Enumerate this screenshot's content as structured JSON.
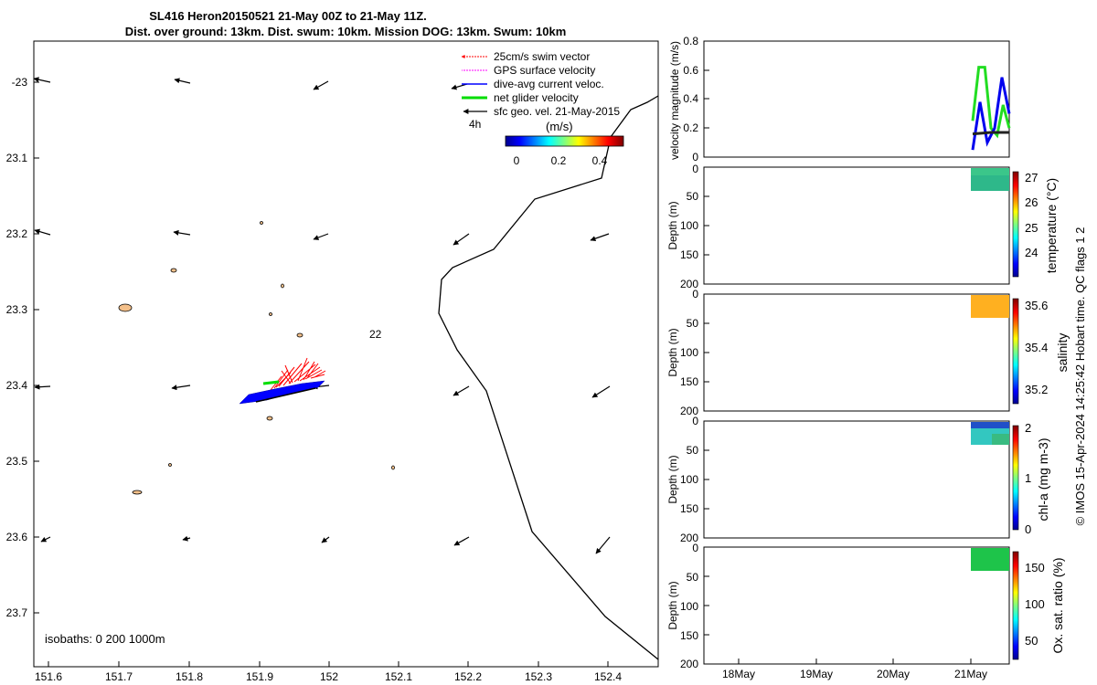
{
  "title": {
    "line1": "SL416 Heron20150521 21-May 00Z to 21-May 11Z.",
    "line2": "Dist. over ground: 13km. Dist. swum: 10km. Mission DOG: 13km. Swum: 10km"
  },
  "colors": {
    "swim": "#ff0000",
    "gps": "#ff00ff",
    "dive_avg": "#0000ff",
    "net": "#00dd00",
    "sfc": "#000000",
    "reef": "#f4c08a"
  },
  "map": {
    "xticks": [
      "151.6",
      "151.7",
      "151.8",
      "151.9",
      "152",
      "152.1",
      "152.2",
      "152.3",
      "152.4"
    ],
    "yticks": [
      "-23",
      "23.1",
      "23.2",
      "23.3",
      "23.4",
      "23.5",
      "23.6",
      "23.7"
    ],
    "isobath_label": "isobaths: 0   200  1000m",
    "label_22": "22",
    "label_4h": "4h",
    "colorbar_unit": "(m/s)",
    "colorbar_ticks": [
      "0",
      "0.2",
      "0.4"
    ]
  },
  "legend": [
    {
      "label": "25cm/s swim vector",
      "color": "#ff0000"
    },
    {
      "label": "GPS surface velocity",
      "color": "#ff00ff"
    },
    {
      "label": "dive-avg current veloc.",
      "color": "#0000ff"
    },
    {
      "label": "net glider velocity",
      "color": "#00dd00"
    },
    {
      "label": "sfc geo. vel. 21-May-2015",
      "color": "#000000"
    }
  ],
  "chart_data": [
    {
      "type": "line",
      "ylabel": "velocity magnitude (m/s)",
      "ylim": [
        0,
        0.8
      ],
      "yticks": [
        "0",
        "0.2",
        "0.4",
        "0.6",
        "0.8"
      ],
      "series": [
        {
          "name": "net glider velocity",
          "values": [
            0.25,
            0.62,
            0.62,
            0.2,
            0.15,
            0.36,
            0.2
          ]
        },
        {
          "name": "dive-avg current veloc.",
          "values": [
            0.05,
            0.38,
            0.1,
            0.2,
            0.55,
            0.3
          ]
        },
        {
          "name": "sfc geo. vel.",
          "values": [
            0.16,
            0.17,
            0.17
          ]
        }
      ]
    },
    {
      "type": "heatmap",
      "ylabel": "Depth (m)",
      "clabel": "temperature (°C)",
      "yticks": [
        "0",
        "50",
        "100",
        "150",
        "200"
      ],
      "cticks": [
        "27",
        "26",
        "25",
        "24"
      ],
      "depth_range": [
        0,
        40
      ]
    },
    {
      "type": "heatmap",
      "ylabel": "Depth (m)",
      "clabel": "salinity",
      "yticks": [
        "0",
        "50",
        "100",
        "150",
        "200"
      ],
      "cticks": [
        "35.6",
        "35.4",
        "35.2"
      ],
      "depth_range": [
        0,
        40
      ]
    },
    {
      "type": "heatmap",
      "ylabel": "Depth (m)",
      "clabel": "chl-a (mg m-3)",
      "yticks": [
        "0",
        "50",
        "100",
        "150",
        "200"
      ],
      "cticks": [
        "2",
        "1",
        "0"
      ],
      "depth_range": [
        0,
        40
      ]
    },
    {
      "type": "heatmap",
      "ylabel": "Depth (m)",
      "clabel": "Ox. sat. ratio (%)",
      "yticks": [
        "0",
        "50",
        "100",
        "150",
        "200"
      ],
      "cticks": [
        "150",
        "100",
        "50"
      ],
      "depth_range": [
        0,
        40
      ]
    }
  ],
  "time_axis": {
    "ticks": [
      "18May",
      "19May",
      "20May",
      "21May"
    ]
  },
  "credit": "© IMOS 15-Apr-2024 14:25:42 Hobart time. QC flags 1  2"
}
